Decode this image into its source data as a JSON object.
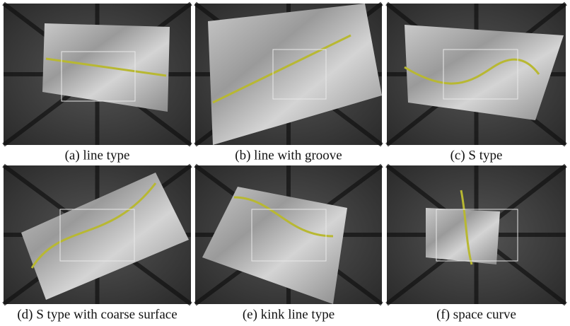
{
  "panels": [
    {
      "caption": "(a) line type"
    },
    {
      "caption": "(b) line with groove"
    },
    {
      "caption": "(c) S type"
    },
    {
      "caption": "(d) S type with coarse surface"
    },
    {
      "caption": "(e) kink line type"
    },
    {
      "caption": "(f) space curve"
    }
  ]
}
